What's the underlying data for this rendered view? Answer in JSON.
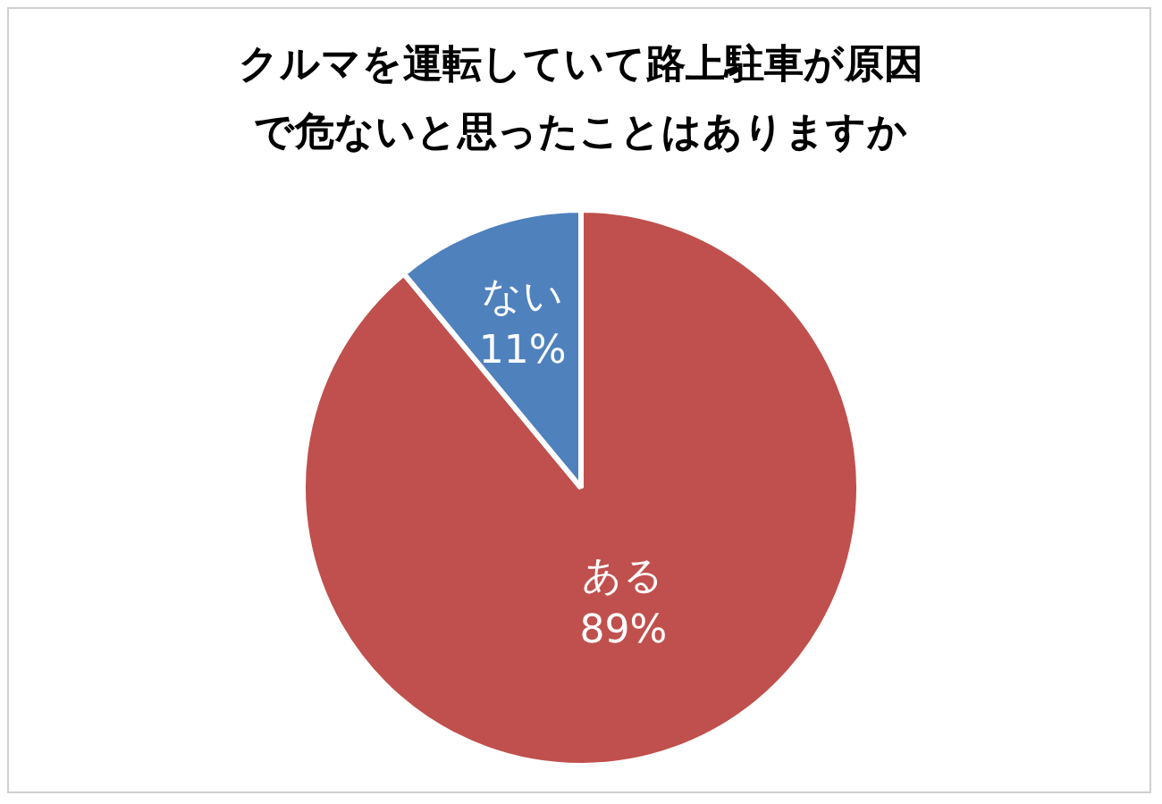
{
  "chart_data": {
    "type": "pie",
    "title": "クルマを運転していて路上駐車が原因で危ないと思ったことはありますか",
    "categories": [
      "ある",
      "ない"
    ],
    "values": [
      89,
      11
    ],
    "colors": [
      "#c0504d",
      "#4f81bd"
    ],
    "value_labels": [
      "89%",
      "11%"
    ]
  }
}
